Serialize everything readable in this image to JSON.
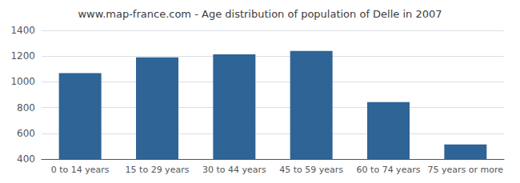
{
  "chart_data": {
    "type": "bar",
    "title": "www.map-france.com - Age distribution of population of Delle in 2007",
    "categories": [
      "0 to 14 years",
      "15 to 29 years",
      "30 to 44 years",
      "45 to 59 years",
      "60 to 74 years",
      "75 years or more"
    ],
    "values": [
      1068,
      1190,
      1214,
      1240,
      843,
      513
    ],
    "color": "#2e6496",
    "ylim": [
      400,
      1400
    ],
    "yticks": [
      400,
      600,
      800,
      1000,
      1200,
      1400
    ],
    "grid": true
  }
}
